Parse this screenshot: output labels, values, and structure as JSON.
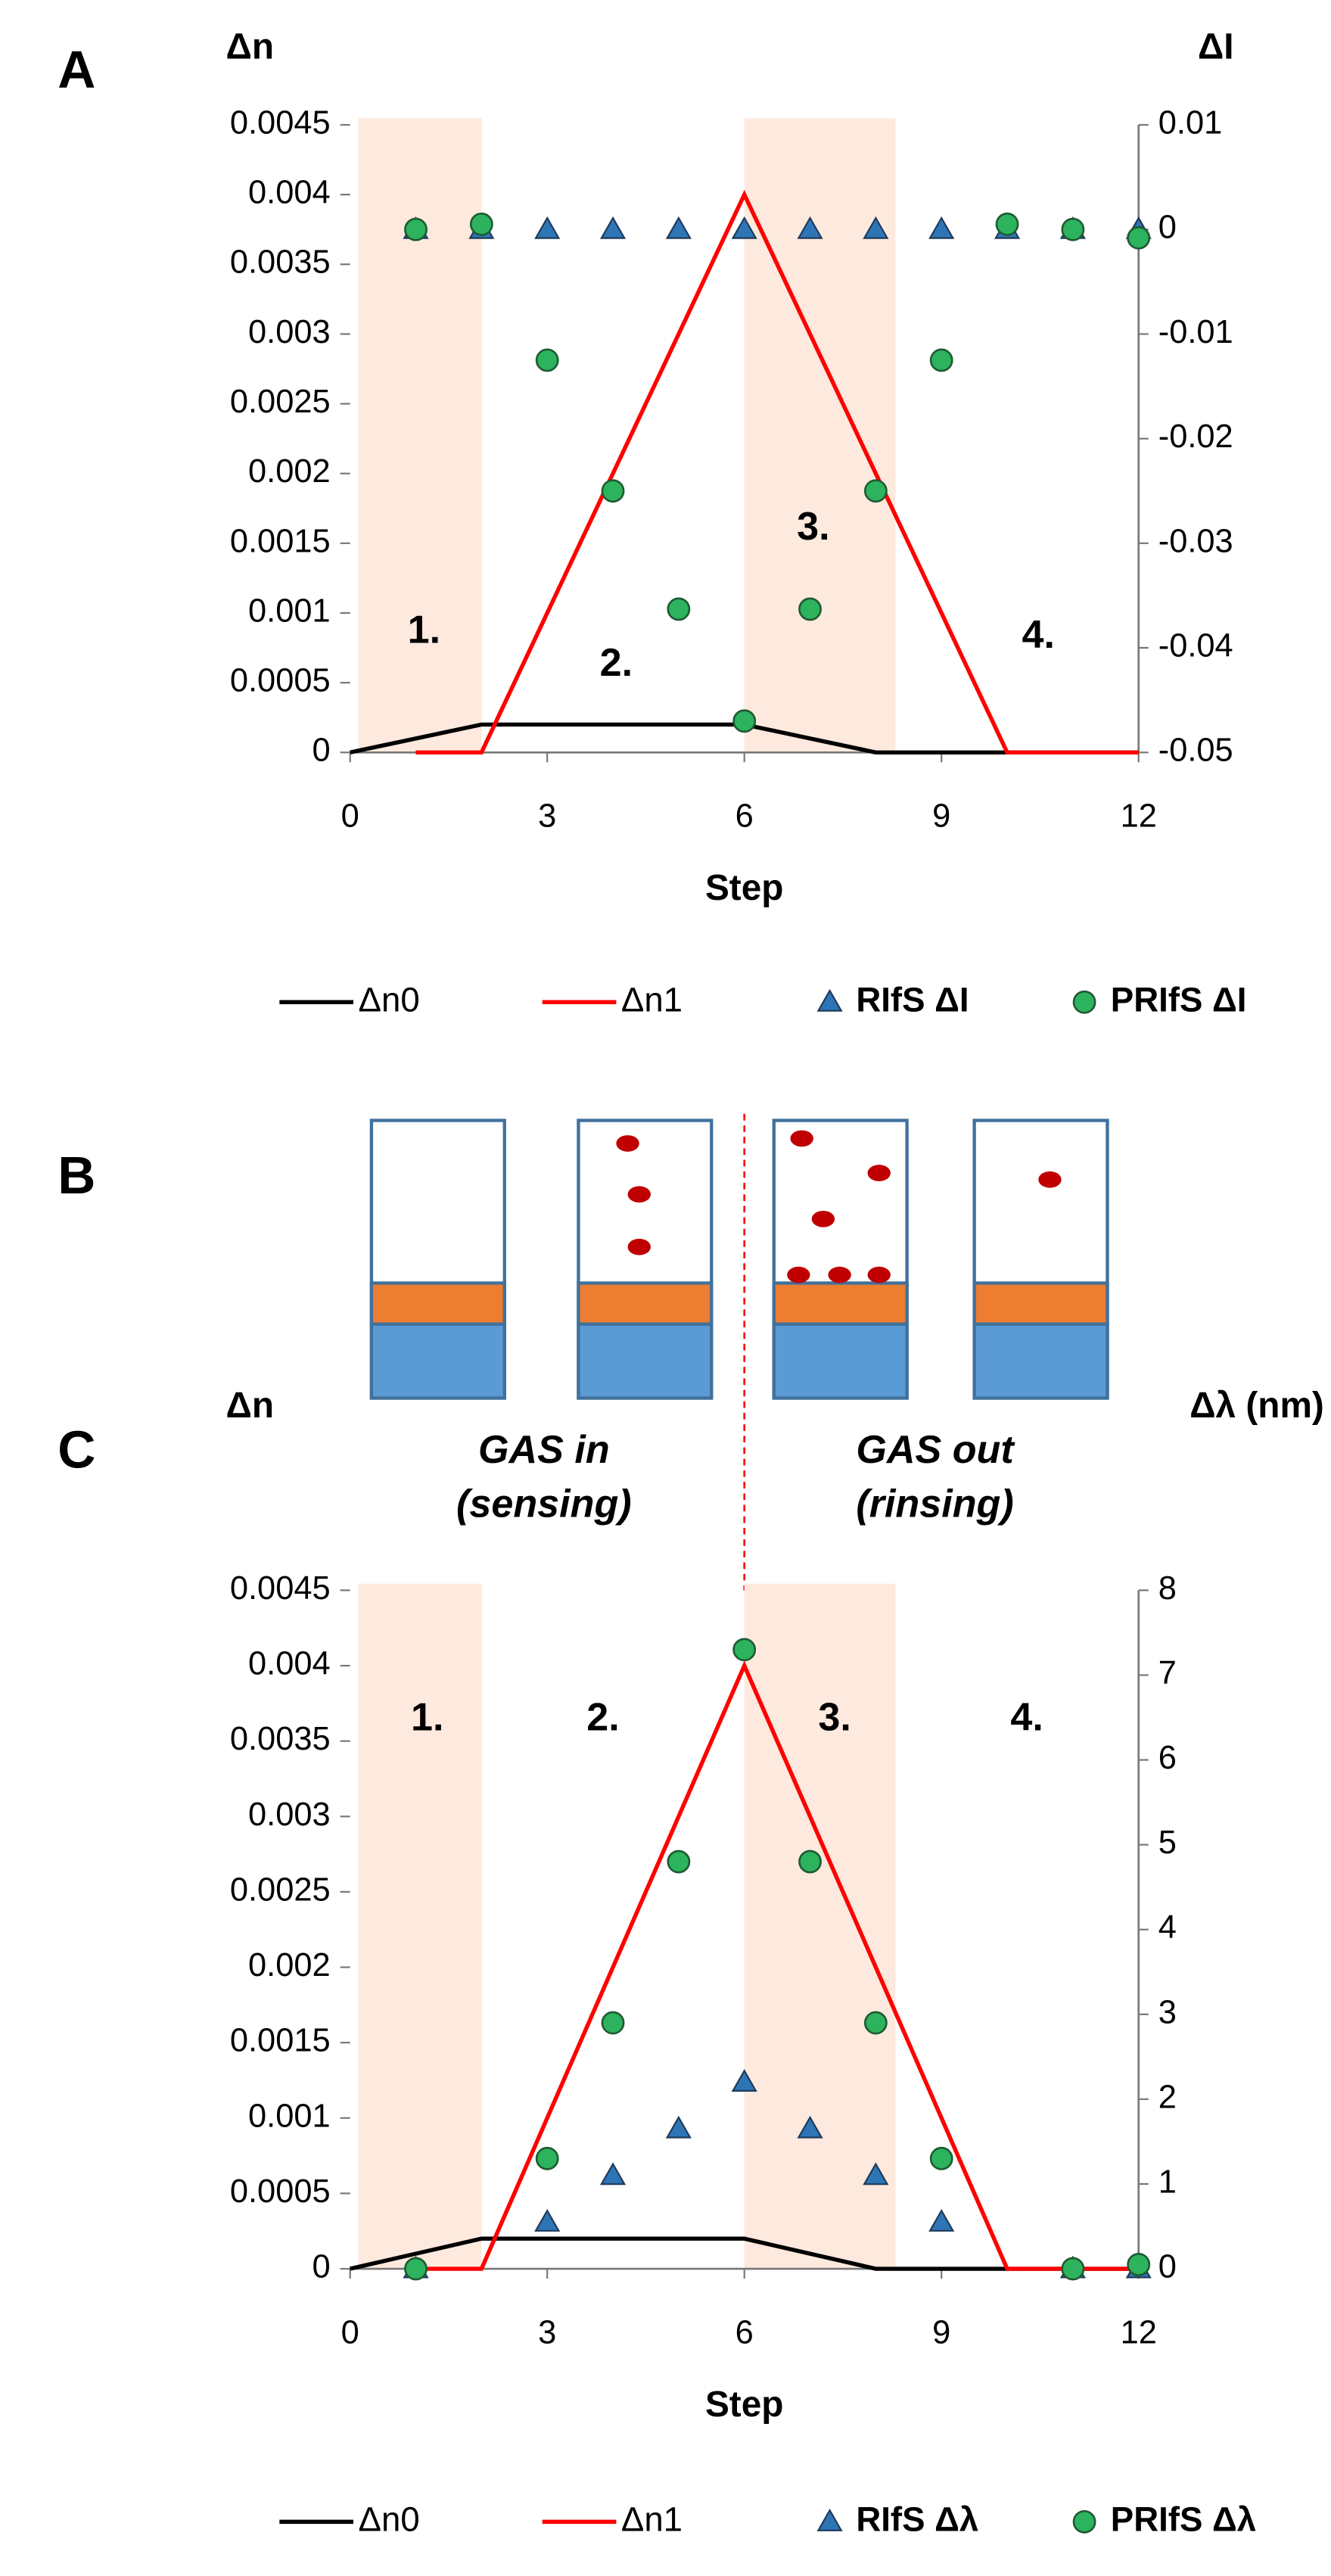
{
  "chart_data": [
    {
      "type": "line",
      "panel": "A",
      "y_label": "Δn",
      "y2_label": "ΔI",
      "x_label": "Step",
      "xlim": [
        0,
        12
      ],
      "xticks": [
        0,
        3,
        6,
        9,
        12
      ],
      "ylim": [
        0,
        0.0045
      ],
      "yticks": [
        0,
        0.0005,
        0.001,
        0.0015,
        0.002,
        0.0025,
        0.003,
        0.0035,
        0.004,
        0.0045
      ],
      "y2lim": [
        -0.05,
        0.01
      ],
      "y2ticks": [
        -0.05,
        -0.04,
        -0.03,
        -0.02,
        -0.01,
        0,
        0.01
      ],
      "shaded_regions": [
        [
          0.125,
          2
        ],
        [
          6,
          8.3
        ]
      ],
      "shade_color": "#fde9dd",
      "annotations": [
        "1.",
        "2.",
        "3.",
        "4."
      ],
      "series": [
        {
          "name": "Δn0",
          "color": "#000000",
          "style": "line",
          "x": [
            0,
            2,
            6,
            8,
            12
          ],
          "values": [
            0,
            0.0002,
            0.0002,
            0,
            0
          ]
        },
        {
          "name": "Δn1",
          "color": "#ff0000",
          "style": "line",
          "x": [
            1,
            2,
            6,
            10,
            12
          ],
          "values": [
            0,
            0,
            0.004,
            0,
            0
          ]
        },
        {
          "name": "RIfS ΔI",
          "color": "#2e75b6",
          "style": "triangle",
          "axis": "y2",
          "x": [
            1,
            2,
            3,
            4,
            5,
            6,
            7,
            8,
            9,
            10,
            11,
            12
          ],
          "values": [
            0,
            0,
            0,
            0,
            0,
            0,
            0,
            0,
            0,
            0,
            0,
            0
          ]
        },
        {
          "name": "PRIfS ΔI",
          "color": "#2db35d",
          "style": "circle",
          "axis": "y2",
          "x": [
            1,
            2,
            3,
            4,
            5,
            6,
            7,
            8,
            9,
            10,
            11,
            12
          ],
          "values": [
            0,
            0.0005,
            -0.0125,
            -0.025,
            -0.0363,
            -0.047,
            -0.0363,
            -0.025,
            -0.0125,
            0.0005,
            0,
            -0.0008
          ]
        }
      ]
    },
    {
      "type": "line",
      "panel": "C",
      "y_label": "Δn",
      "y2_label": "Δλ (nm)",
      "x_label": "Step",
      "xlim": [
        0,
        12
      ],
      "xticks": [
        0,
        3,
        6,
        9,
        12
      ],
      "ylim": [
        0,
        0.0045
      ],
      "yticks": [
        0,
        0.0005,
        0.001,
        0.0015,
        0.002,
        0.0025,
        0.003,
        0.0035,
        0.004,
        0.0045
      ],
      "y2lim": [
        0,
        8
      ],
      "y2ticks": [
        0,
        1,
        2,
        3,
        4,
        5,
        6,
        7,
        8
      ],
      "shaded_regions": [
        [
          0.125,
          2
        ],
        [
          6,
          8.3
        ]
      ],
      "shade_color": "#fde9dd",
      "annotations": [
        "1.",
        "2.",
        "3.",
        "4."
      ],
      "series": [
        {
          "name": "Δn0",
          "color": "#000000",
          "style": "line",
          "x": [
            0,
            2,
            6,
            8,
            12
          ],
          "values": [
            0,
            0.0002,
            0.0002,
            0,
            0
          ]
        },
        {
          "name": "Δn1",
          "color": "#ff0000",
          "style": "line",
          "x": [
            1,
            2,
            6,
            10,
            12
          ],
          "values": [
            0,
            0,
            0.004,
            0,
            0
          ]
        },
        {
          "name": "RIfS Δλ",
          "color": "#2e75b6",
          "style": "triangle",
          "axis": "y2",
          "x": [
            1,
            3,
            4,
            5,
            6,
            7,
            8,
            9,
            11,
            12
          ],
          "values": [
            0,
            0.55,
            1.1,
            1.65,
            2.2,
            1.65,
            1.1,
            0.55,
            0,
            0
          ]
        },
        {
          "name": "PRIfS Δλ",
          "color": "#2db35d",
          "style": "circle",
          "axis": "y2",
          "x": [
            1,
            3,
            4,
            5,
            6,
            7,
            8,
            9,
            11,
            12
          ],
          "values": [
            0,
            1.3,
            2.9,
            4.8,
            7.3,
            4.8,
            2.9,
            1.3,
            0,
            0.05
          ]
        }
      ]
    }
  ],
  "diagram": {
    "panel": "B",
    "left_caption": [
      "GAS in",
      "(sensing)"
    ],
    "right_caption": [
      "GAS out",
      "(rinsing)"
    ]
  }
}
